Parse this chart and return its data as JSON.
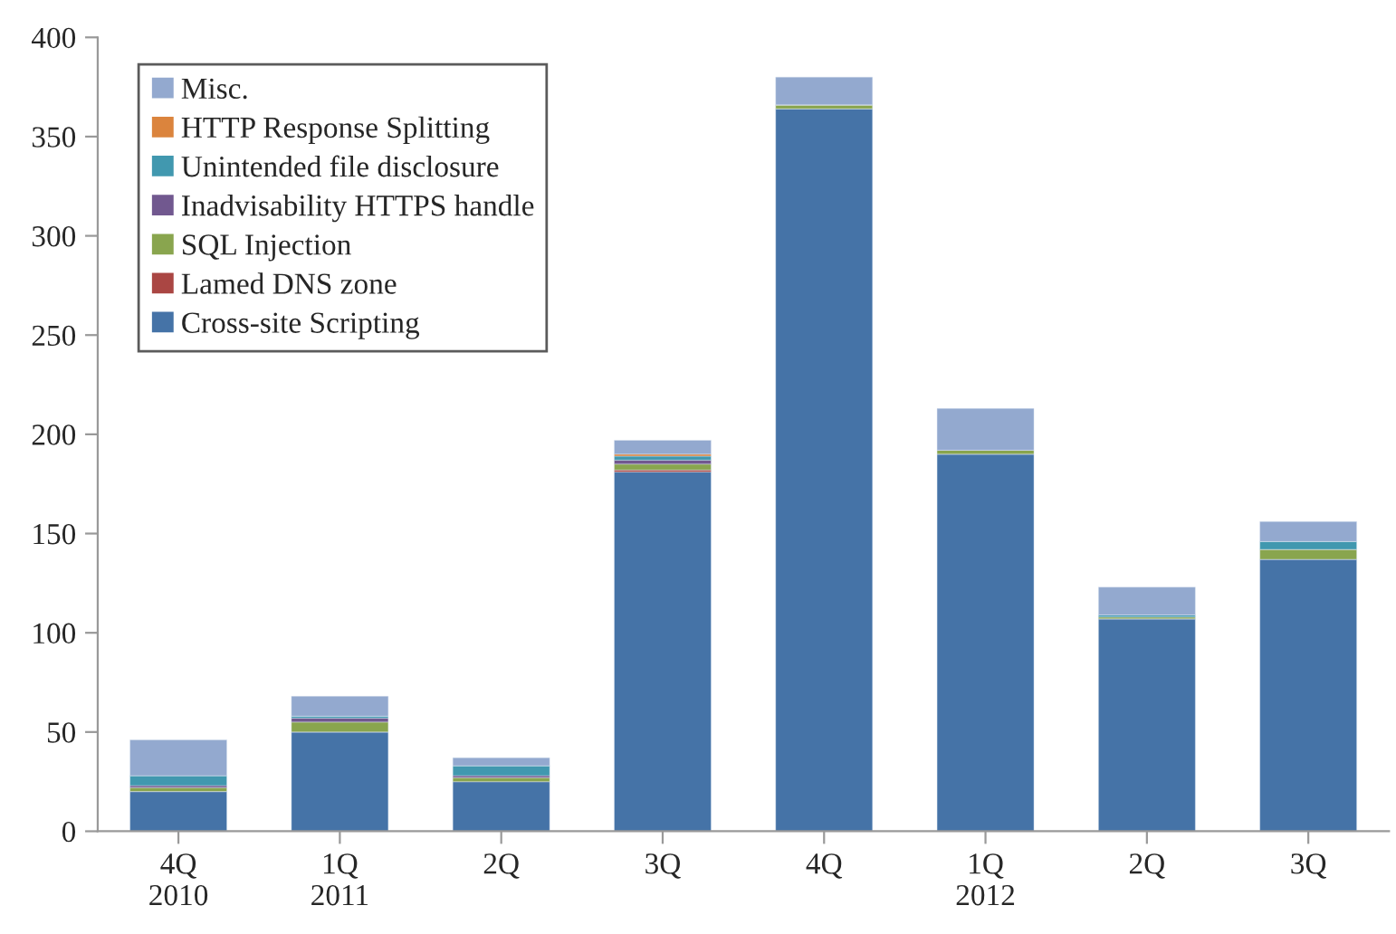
{
  "chart_data": {
    "type": "bar",
    "stacked": true,
    "categories": [
      "4Q\n2010",
      "1Q\n2011",
      "2Q",
      "3Q",
      "4Q",
      "1Q\n2012",
      "2Q",
      "3Q"
    ],
    "series": [
      {
        "name": "Cross-site Scripting",
        "color": "#4573a7",
        "values": [
          20,
          50,
          25,
          181,
          364,
          190,
          107,
          137
        ]
      },
      {
        "name": "Lamed DNS zone",
        "color": "#aa4643",
        "values": [
          0,
          0,
          0,
          1,
          0,
          0,
          0,
          0
        ]
      },
      {
        "name": "SQL Injection",
        "color": "#89a54e",
        "values": [
          2,
          5,
          2,
          3,
          2,
          2,
          1,
          5
        ]
      },
      {
        "name": "Inadvisability HTTPS handle",
        "color": "#71588f",
        "values": [
          1,
          2,
          1,
          2,
          0,
          0,
          0,
          0
        ]
      },
      {
        "name": "Unintended file disclosure",
        "color": "#4198af",
        "values": [
          5,
          1,
          5,
          2,
          0,
          0,
          1,
          4
        ]
      },
      {
        "name": "HTTP Response Splitting",
        "color": "#db843d",
        "values": [
          0,
          0,
          0,
          1,
          0,
          0,
          0,
          0
        ]
      },
      {
        "name": "Misc.",
        "color": "#93a9cf",
        "values": [
          18,
          10,
          4,
          7,
          14,
          21,
          14,
          10
        ]
      }
    ],
    "ylim": [
      0,
      400
    ],
    "yticks": [
      0,
      50,
      100,
      150,
      200,
      250,
      300,
      350,
      400
    ],
    "grid": false,
    "legend": "top left"
  }
}
